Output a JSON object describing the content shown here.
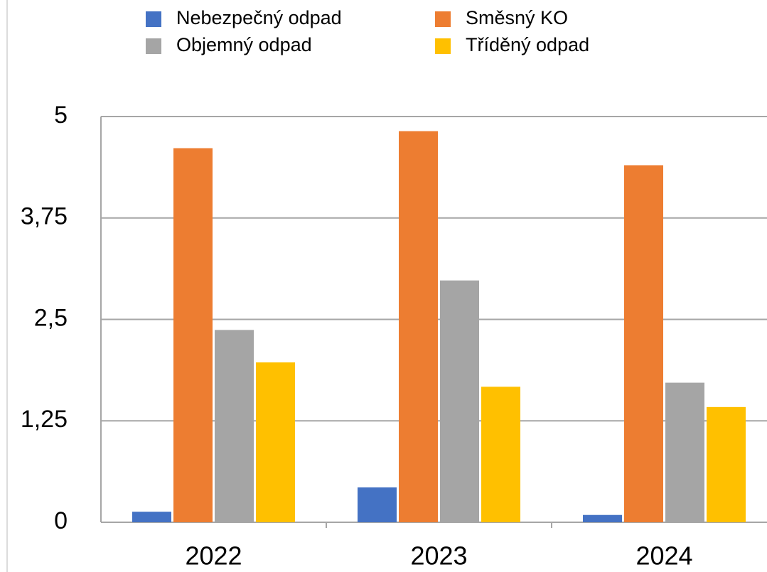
{
  "chart_data": {
    "type": "bar",
    "categories": [
      "2022",
      "2023",
      "2024"
    ],
    "series": [
      {
        "name": "Nebezpečný odpad",
        "color": "#4472c4",
        "values": [
          0.13,
          0.43,
          0.09
        ]
      },
      {
        "name": "Směsný KO",
        "color": "#ed7d31",
        "values": [
          4.61,
          4.82,
          4.4
        ]
      },
      {
        "name": "Objemný odpad",
        "color": "#a5a5a5",
        "values": [
          2.37,
          2.98,
          1.72
        ]
      },
      {
        "name": "Tříděný odpad",
        "color": "#ffc000",
        "values": [
          1.97,
          1.67,
          1.42
        ]
      }
    ],
    "ylim": [
      0,
      5
    ],
    "yticks": [
      0,
      {
        "value": 1.25,
        "label": "1,25"
      },
      {
        "value": 2.5,
        "label": "2,5"
      },
      {
        "value": 3.75,
        "label": "3,75"
      },
      5
    ],
    "grid": true
  }
}
